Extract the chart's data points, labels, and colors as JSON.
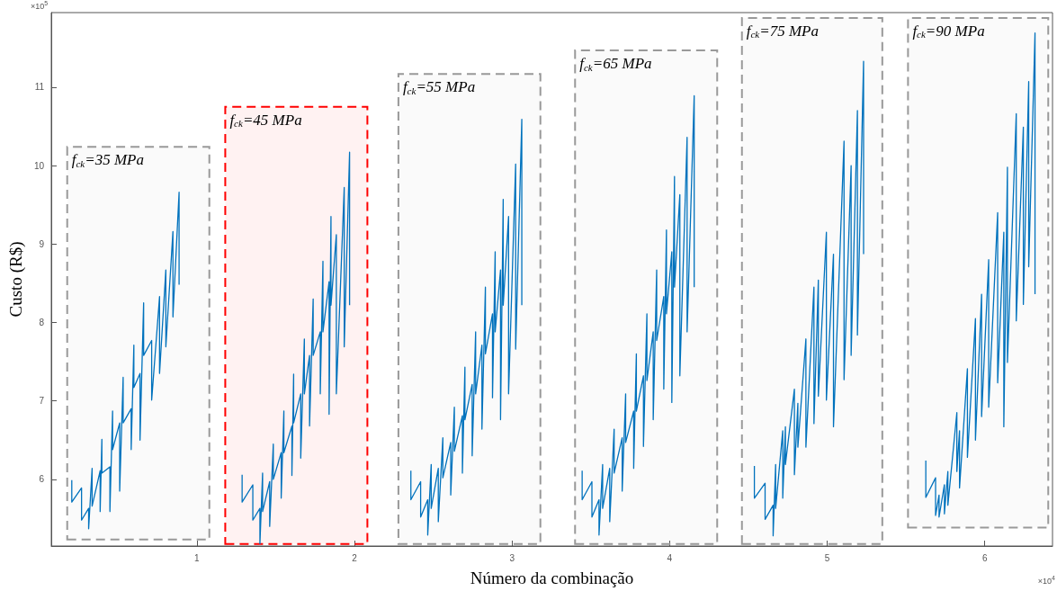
{
  "chart_data": {
    "type": "line",
    "xlabel": "Número da combinação",
    "ylabel": "Custo (R$)",
    "xlim": [
      0.076,
      6.43
    ],
    "ylim": [
      5.15,
      11.95
    ],
    "xticks": [
      1,
      2,
      3,
      4,
      5,
      6
    ],
    "yticks": [
      6,
      7,
      8,
      9,
      10,
      11
    ],
    "grid": false,
    "marker": "none",
    "annotations": [
      "×10$^{5}$",
      "×10$^{4}$"
    ],
    "bands": [
      {
        "axis": "x",
        "from": 0.177,
        "to": 1.079,
        "label": "f$_{ck}$=35 MPa",
        "color": "#999999"
      },
      {
        "axis": "x",
        "from": 1.18,
        "to": 2.082,
        "label": "f$_{ck}$=45 MPa",
        "color": "#ff0000"
      },
      {
        "axis": "x",
        "from": 2.279,
        "to": 3.18,
        "label": "f$_{ck}$=55 MPa",
        "color": "#999999"
      },
      {
        "axis": "x",
        "from": 3.4,
        "to": 4.302,
        "label": "f$_{ck}$=65 MPa",
        "color": "#999999"
      },
      {
        "axis": "x",
        "from": 4.459,
        "to": 5.35,
        "label": "f$_{ck}$=75 MPa",
        "color": "#999999"
      },
      {
        "axis": "x",
        "from": 5.513,
        "to": 6.403,
        "label": "f$_{ck}$=90 MPa",
        "color": "#999999"
      }
    ],
    "series": [
      {
        "color": "#0072bd",
        "x": [
          0.206,
          0.206,
          0.268,
          0.268,
          0.313,
          0.313,
          0.335,
          0.335,
          0.386,
          0.386,
          0.397,
          0.397,
          0.448,
          0.448,
          0.465,
          0.465,
          0.51,
          0.51,
          0.532,
          0.532,
          0.583,
          0.583,
          0.6,
          0.6,
          0.639,
          0.639,
          0.662,
          0.662,
          0.713,
          0.713,
          0.763,
          0.763,
          0.803,
          0.803,
          0.848,
          0.848,
          0.887,
          0.887
        ],
        "values": [
          5.99,
          5.71,
          5.89,
          5.48,
          5.63,
          5.37,
          6.14,
          5.66,
          6.11,
          5.59,
          6.51,
          6.08,
          6.16,
          5.59,
          6.87,
          6.38,
          6.72,
          5.85,
          7.3,
          6.72,
          6.9,
          6.38,
          7.71,
          7.17,
          7.35,
          6.5,
          8.25,
          7.58,
          7.77,
          7.01,
          8.33,
          7.35,
          8.67,
          7.69,
          9.16,
          8.07,
          9.66,
          8.48
        ]
      },
      {
        "color": "#0072bd",
        "x": [
          1.287,
          1.287,
          1.355,
          1.355,
          1.4,
          1.4,
          1.417,
          1.417,
          1.462,
          1.462,
          1.485,
          1.485,
          1.535,
          1.535,
          1.552,
          1.552,
          1.603,
          1.603,
          1.614,
          1.614,
          1.659,
          1.659,
          1.682,
          1.682,
          1.715,
          1.715,
          1.738,
          1.738,
          1.783,
          1.783,
          1.8,
          1.8,
          1.839,
          1.839,
          1.851,
          1.851,
          1.885,
          1.885,
          1.935,
          1.935,
          1.969,
          1.969
        ],
        "values": [
          6.06,
          5.71,
          5.93,
          5.48,
          5.63,
          5.18,
          6.08,
          5.59,
          5.97,
          5.4,
          6.45,
          6,
          6.34,
          5.76,
          6.87,
          6.34,
          6.68,
          6.05,
          7.34,
          6.72,
          7.09,
          6.27,
          7.79,
          7.09,
          7.58,
          6.68,
          8.3,
          7.58,
          7.88,
          7.09,
          8.78,
          7.88,
          8.52,
          6.83,
          9.35,
          8.22,
          9.12,
          7.09,
          9.72,
          7.69,
          10.17,
          8.22
        ]
      },
      {
        "color": "#0072bd",
        "x": [
          2.358,
          2.358,
          2.42,
          2.42,
          2.465,
          2.465,
          2.487,
          2.487,
          2.532,
          2.532,
          2.561,
          2.561,
          2.611,
          2.611,
          2.634,
          2.634,
          2.685,
          2.685,
          2.701,
          2.701,
          2.747,
          2.747,
          2.769,
          2.769,
          2.809,
          2.809,
          2.831,
          2.831,
          2.876,
          2.876,
          2.893,
          2.893,
          2.927,
          2.927,
          2.944,
          2.944,
          2.978,
          2.978,
          3.023,
          3.023,
          3.062,
          3.062
        ],
        "values": [
          6.11,
          5.74,
          5.97,
          5.52,
          5.74,
          5.29,
          6.19,
          5.63,
          6.14,
          5.46,
          6.53,
          6.02,
          6.47,
          5.8,
          6.92,
          6.36,
          6.81,
          6.08,
          7.43,
          6.76,
          7.21,
          6.3,
          7.88,
          7.09,
          7.71,
          6.64,
          8.45,
          7.6,
          8.11,
          7.04,
          8.9,
          7.88,
          8.67,
          6.76,
          9.57,
          8.22,
          9.35,
          7.09,
          10.02,
          7.66,
          10.59,
          8.22
        ]
      },
      {
        "color": "#0072bd",
        "x": [
          3.445,
          3.445,
          3.507,
          3.507,
          3.552,
          3.552,
          3.575,
          3.575,
          3.62,
          3.62,
          3.648,
          3.648,
          3.699,
          3.699,
          3.721,
          3.721,
          3.772,
          3.772,
          3.789,
          3.789,
          3.834,
          3.834,
          3.856,
          3.856,
          3.896,
          3.896,
          3.918,
          3.918,
          3.963,
          3.963,
          3.98,
          3.98,
          4.014,
          4.014,
          4.031,
          4.031,
          4.065,
          4.065,
          4.111,
          4.111,
          4.156,
          4.156
        ],
        "values": [
          6.11,
          5.74,
          5.97,
          5.52,
          5.74,
          5.29,
          6.19,
          5.63,
          6.14,
          5.46,
          6.64,
          6.08,
          6.53,
          5.85,
          7.09,
          6.47,
          6.87,
          6.14,
          7.6,
          6.87,
          7.32,
          6.42,
          8.11,
          7.26,
          7.88,
          6.76,
          8.67,
          7.77,
          8.33,
          7.15,
          9.18,
          8.11,
          8.9,
          6.98,
          9.86,
          8.45,
          9.63,
          7.32,
          10.36,
          7.88,
          10.89,
          8.45
        ]
      },
      {
        "color": "#0072bd",
        "x": [
          4.538,
          4.538,
          4.606,
          4.606,
          4.657,
          4.657,
          4.673,
          4.673,
          4.718,
          4.718,
          4.735,
          4.735,
          4.792,
          4.792,
          4.814,
          4.814,
          4.865,
          4.865,
          4.916,
          4.916,
          4.944,
          4.944,
          4.995,
          4.995,
          5.04,
          5.04,
          5.107,
          5.107,
          5.152,
          5.152,
          5.192,
          5.192,
          5.231,
          5.231
        ],
        "values": [
          6.17,
          5.76,
          5.95,
          5.49,
          5.67,
          5.28,
          6.19,
          5.63,
          6.62,
          5.76,
          6.67,
          6.19,
          7.15,
          6.06,
          6.97,
          6.41,
          7.79,
          6.41,
          8.45,
          6.71,
          8.54,
          7.06,
          9.15,
          7.01,
          8.87,
          6.67,
          10.31,
          7.27,
          10,
          7.58,
          10.7,
          7.84,
          11.33,
          8.87
        ]
      },
      {
        "color": "#0072bd",
        "x": [
          5.626,
          5.626,
          5.688,
          5.688,
          5.71,
          5.71,
          5.744,
          5.744,
          5.766,
          5.766,
          5.823,
          5.823,
          5.84,
          5.84,
          5.89,
          5.89,
          5.941,
          5.941,
          5.98,
          5.98,
          6.025,
          6.025,
          6.082,
          6.082,
          6.121,
          6.121,
          6.144,
          6.144,
          6.2,
          6.2,
          6.245,
          6.245,
          6.279,
          6.279,
          6.319,
          6.319
        ],
        "values": [
          6.24,
          5.77,
          6.02,
          5.54,
          5.8,
          5.52,
          5.93,
          5.56,
          6.1,
          5.67,
          6.85,
          6.1,
          6.62,
          5.89,
          7.41,
          6.28,
          8.05,
          6.5,
          8.36,
          6.8,
          8.8,
          6.92,
          9.4,
          7.23,
          9.15,
          6.67,
          9.98,
          7.49,
          10.66,
          8.02,
          10.49,
          8.23,
          11.07,
          8.71,
          11.69,
          8.36
        ]
      }
    ]
  }
}
